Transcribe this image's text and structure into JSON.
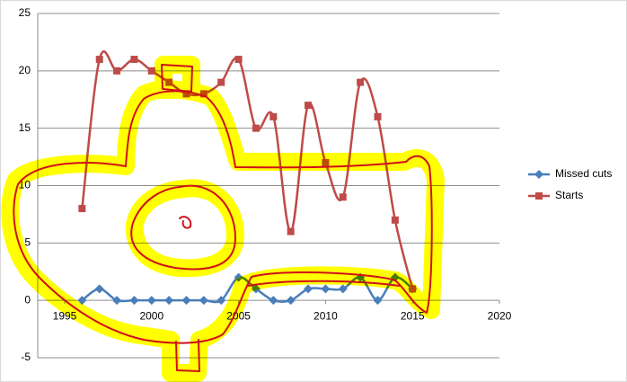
{
  "chart_data": {
    "type": "line",
    "x": [
      1996,
      1997,
      1998,
      1999,
      2000,
      2001,
      2002,
      2003,
      2004,
      2005,
      2006,
      2007,
      2008,
      2009,
      2010,
      2011,
      2012,
      2013,
      2014,
      2015
    ],
    "series": [
      {
        "name": "Missed cuts",
        "color": "#4a7ebb",
        "marker": "diamond",
        "values": [
          0,
          1,
          0,
          0,
          0,
          0,
          0,
          0,
          0,
          2,
          1,
          0,
          0,
          1,
          1,
          1,
          2,
          0,
          2,
          1
        ]
      },
      {
        "name": "Starts",
        "color": "#be4b48",
        "marker": "square",
        "values": [
          8,
          21,
          20,
          21,
          20,
          19,
          18,
          18,
          19,
          21,
          15,
          16,
          6,
          17,
          12,
          9,
          19,
          16,
          7,
          1
        ]
      }
    ],
    "xlim": [
      1995,
      2020
    ],
    "xticks": [
      1995,
      2000,
      2005,
      2010,
      2015,
      2020
    ],
    "ylim": [
      -5,
      25
    ],
    "yticks": [
      -5,
      0,
      5,
      10,
      15,
      20,
      25
    ],
    "grid": true,
    "smooth": true,
    "legend": "right"
  }
}
